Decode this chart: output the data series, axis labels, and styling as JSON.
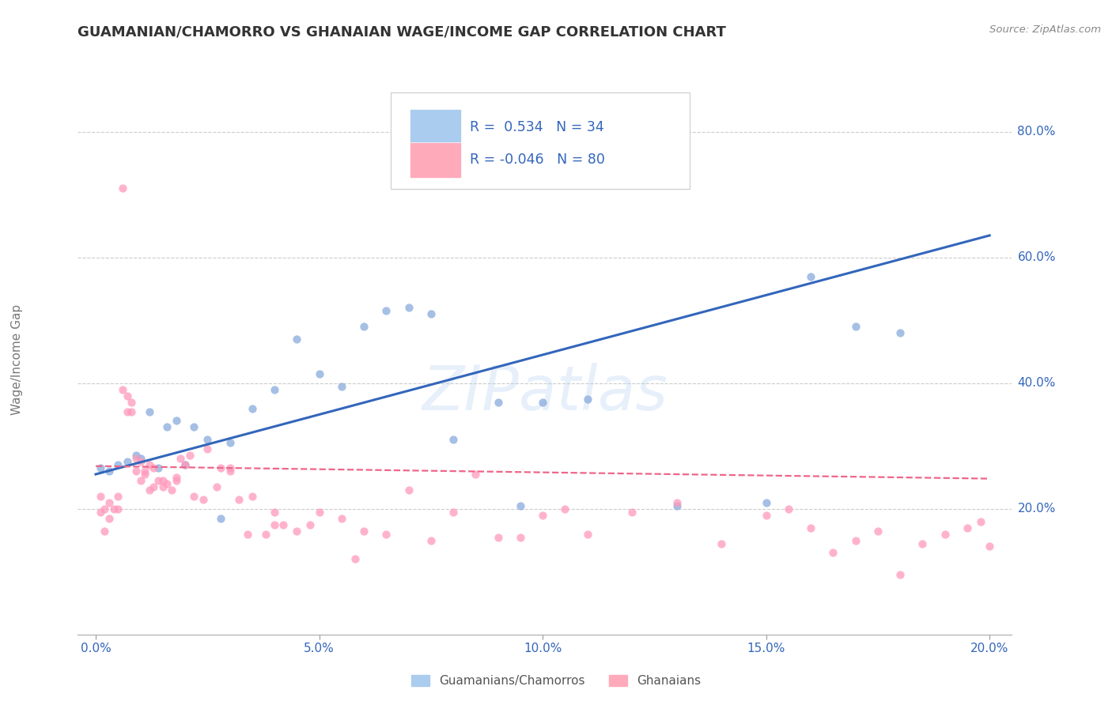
{
  "title": "GUAMANIAN/CHAMORRO VS GHANAIAN WAGE/INCOME GAP CORRELATION CHART",
  "source": "Source: ZipAtlas.com",
  "ylabel": "Wage/Income Gap",
  "ytick_labels": [
    "80.0%",
    "60.0%",
    "40.0%",
    "20.0%"
  ],
  "ytick_values": [
    0.8,
    0.6,
    0.4,
    0.2
  ],
  "legend_blue_r": " 0.534",
  "legend_blue_n": "34",
  "legend_pink_r": "-0.046",
  "legend_pink_n": "80",
  "legend_blue_label": "Guamanians/Chamorros",
  "legend_pink_label": "Ghanaians",
  "blue_scatter_color": "#88AADD",
  "pink_scatter_color": "#FF99BB",
  "blue_line_color": "#3366BB",
  "pink_line_color": "#EE6688",
  "legend_blue_box": "#AACCEE",
  "legend_pink_box": "#FFAABB",
  "text_color": "#3366BB",
  "watermark": "ZIPatlas",
  "blue_scatter_x": [
    0.001,
    0.003,
    0.005,
    0.007,
    0.009,
    0.01,
    0.012,
    0.014,
    0.016,
    0.018,
    0.02,
    0.022,
    0.025,
    0.028,
    0.03,
    0.035,
    0.04,
    0.045,
    0.05,
    0.055,
    0.06,
    0.065,
    0.07,
    0.075,
    0.08,
    0.09,
    0.095,
    0.1,
    0.11,
    0.13,
    0.15,
    0.16,
    0.17,
    0.18
  ],
  "blue_scatter_y": [
    0.265,
    0.26,
    0.27,
    0.275,
    0.285,
    0.28,
    0.355,
    0.265,
    0.33,
    0.34,
    0.27,
    0.33,
    0.31,
    0.185,
    0.305,
    0.36,
    0.39,
    0.47,
    0.415,
    0.395,
    0.49,
    0.515,
    0.52,
    0.51,
    0.31,
    0.37,
    0.205,
    0.37,
    0.375,
    0.205,
    0.21,
    0.57,
    0.49,
    0.48
  ],
  "pink_scatter_x": [
    0.001,
    0.001,
    0.002,
    0.002,
    0.003,
    0.003,
    0.004,
    0.005,
    0.005,
    0.006,
    0.006,
    0.007,
    0.007,
    0.008,
    0.008,
    0.009,
    0.009,
    0.01,
    0.01,
    0.011,
    0.011,
    0.012,
    0.012,
    0.013,
    0.013,
    0.014,
    0.015,
    0.015,
    0.016,
    0.017,
    0.018,
    0.018,
    0.019,
    0.02,
    0.021,
    0.022,
    0.024,
    0.025,
    0.027,
    0.028,
    0.03,
    0.03,
    0.032,
    0.034,
    0.035,
    0.038,
    0.04,
    0.04,
    0.042,
    0.045,
    0.048,
    0.05,
    0.055,
    0.058,
    0.06,
    0.065,
    0.07,
    0.075,
    0.08,
    0.085,
    0.09,
    0.095,
    0.1,
    0.105,
    0.11,
    0.12,
    0.13,
    0.14,
    0.15,
    0.155,
    0.16,
    0.165,
    0.17,
    0.175,
    0.18,
    0.185,
    0.19,
    0.195,
    0.198,
    0.2
  ],
  "pink_scatter_y": [
    0.195,
    0.22,
    0.2,
    0.165,
    0.185,
    0.21,
    0.2,
    0.2,
    0.22,
    0.39,
    0.71,
    0.355,
    0.38,
    0.355,
    0.37,
    0.26,
    0.28,
    0.275,
    0.245,
    0.255,
    0.26,
    0.23,
    0.27,
    0.265,
    0.235,
    0.245,
    0.245,
    0.235,
    0.24,
    0.23,
    0.25,
    0.245,
    0.28,
    0.27,
    0.285,
    0.22,
    0.215,
    0.295,
    0.235,
    0.265,
    0.26,
    0.265,
    0.215,
    0.16,
    0.22,
    0.16,
    0.175,
    0.195,
    0.175,
    0.165,
    0.175,
    0.195,
    0.185,
    0.12,
    0.165,
    0.16,
    0.23,
    0.15,
    0.195,
    0.255,
    0.155,
    0.155,
    0.19,
    0.2,
    0.16,
    0.195,
    0.21,
    0.145,
    0.19,
    0.2,
    0.17,
    0.13,
    0.15,
    0.165,
    0.095,
    0.145,
    0.16,
    0.17,
    0.18,
    0.14
  ],
  "xmin": -0.004,
  "xmax": 0.205,
  "ymin": 0.0,
  "ymax": 0.875,
  "blue_trend_x": [
    0.0,
    0.2
  ],
  "blue_trend_y": [
    0.255,
    0.635
  ],
  "pink_trend_x": [
    0.0,
    0.2
  ],
  "pink_trend_y": [
    0.268,
    0.248
  ],
  "background_color": "#FFFFFF",
  "grid_color": "#CCCCCC",
  "xtick_positions": [
    0.0,
    0.05,
    0.1,
    0.15,
    0.2
  ],
  "xtick_labels": [
    "0.0%",
    "5.0%",
    "10.0%",
    "15.0%",
    "20.0%"
  ]
}
